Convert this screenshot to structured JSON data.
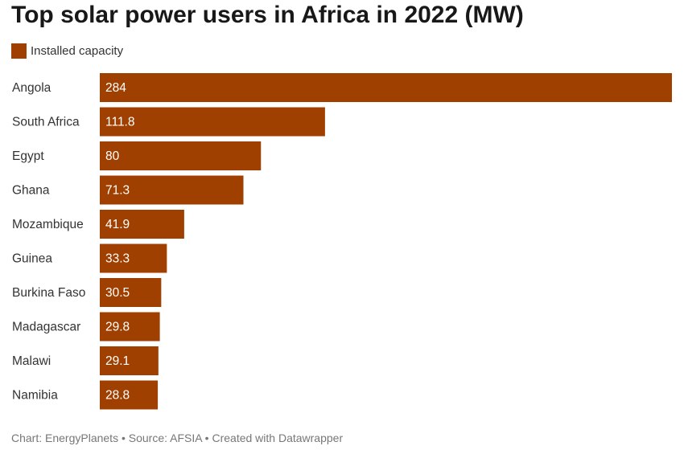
{
  "title": "Top solar power users in Africa in 2022 (MW)",
  "footer": "Chart: EnergyPlanets • Source: AFSIA • Created with Datawrapper",
  "colors": {
    "bar": "#a04000",
    "label": "#333333",
    "value_label": "#ffffff"
  },
  "chart_data": {
    "type": "bar",
    "orientation": "horizontal",
    "title": "Top solar power users in Africa in 2022 (MW)",
    "xlabel": "",
    "ylabel": "",
    "xlim": [
      0,
      284
    ],
    "grid": false,
    "legend": "top-left",
    "categories": [
      "Angola",
      "South Africa",
      "Egypt",
      "Ghana",
      "Mozambique",
      "Guinea",
      "Burkina Faso",
      "Madagascar",
      "Malawi",
      "Namibia"
    ],
    "series": [
      {
        "name": "Installed capacity",
        "values": [
          284,
          111.8,
          80,
          71.3,
          41.9,
          33.3,
          30.5,
          29.8,
          29.1,
          28.8
        ],
        "labels": [
          "284",
          "111.8",
          "80",
          "71.3",
          "41.9",
          "33.3",
          "30.5",
          "29.8",
          "29.1",
          "28.8"
        ]
      }
    ]
  }
}
